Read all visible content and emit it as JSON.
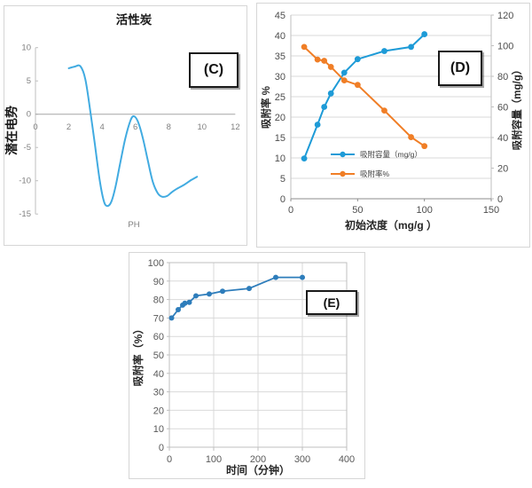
{
  "panels": {
    "c": {
      "annotation": "(C)"
    },
    "d": {
      "annotation": "(D)"
    },
    "e": {
      "annotation": "(E)"
    }
  },
  "chart_data": [
    {
      "id": "c",
      "type": "line",
      "title": "活性炭",
      "xlabel": "PH",
      "ylabel": "潜在电势",
      "xlim": [
        0,
        12
      ],
      "xticks": [
        0,
        2,
        4,
        6,
        8,
        10,
        12
      ],
      "ylim": [
        -15,
        10
      ],
      "yticks": [
        -15,
        -10,
        -5,
        0,
        5,
        10
      ],
      "grid": false,
      "legend_position": "none",
      "annotation": "(C)",
      "series": [
        {
          "name": "潜在电势",
          "color": "#41ABE1",
          "markers": false,
          "smooth": true,
          "points": [
            [
              2.0,
              6.9
            ],
            [
              2.35,
              7.15
            ],
            [
              2.7,
              7.2
            ],
            [
              3.0,
              5.2
            ],
            [
              3.3,
              0.3
            ],
            [
              3.55,
              -4.2
            ],
            [
              3.85,
              -9.8
            ],
            [
              4.1,
              -13.0
            ],
            [
              4.3,
              -13.8
            ],
            [
              4.55,
              -13.2
            ],
            [
              4.8,
              -11.0
            ],
            [
              5.1,
              -7.2
            ],
            [
              5.4,
              -3.6
            ],
            [
              5.7,
              -1.0
            ],
            [
              5.9,
              -0.3
            ],
            [
              6.15,
              -1.1
            ],
            [
              6.45,
              -3.6
            ],
            [
              6.75,
              -7.0
            ],
            [
              7.05,
              -10.2
            ],
            [
              7.35,
              -11.9
            ],
            [
              7.6,
              -12.4
            ],
            [
              7.9,
              -12.3
            ],
            [
              8.2,
              -11.7
            ],
            [
              8.5,
              -11.2
            ],
            [
              9.0,
              -10.5
            ],
            [
              9.35,
              -9.9
            ],
            [
              9.7,
              -9.4
            ]
          ]
        }
      ]
    },
    {
      "id": "d",
      "type": "line",
      "title": "",
      "xlabel": "初始浓度（mg/g ）",
      "ylabel_left": "吸附率 %",
      "ylabel_right": "吸附容量（mg/g）",
      "xlim": [
        0,
        150
      ],
      "xticks": [
        0,
        50,
        100,
        150
      ],
      "ylim_left": [
        0,
        45
      ],
      "yticks_left": [
        0,
        5,
        10,
        15,
        20,
        25,
        30,
        35,
        40,
        45
      ],
      "ylim_right": [
        0,
        120
      ],
      "yticks_right": [
        0,
        20,
        40,
        60,
        80,
        100,
        120
      ],
      "grid": "horizontal",
      "legend_position": "inside-lower-left",
      "annotation": "(D)",
      "x": [
        10,
        20,
        25,
        30,
        40,
        50,
        70,
        90,
        100
      ],
      "series": [
        {
          "name": "吸附容量（mg/g）",
          "axis": "right",
          "color": "#1E9BD7",
          "markers": true,
          "values": [
            26.3,
            48.4,
            60.0,
            68.8,
            82.4,
            91.2,
            96.5,
            99.2,
            107.5
          ]
        },
        {
          "name": "吸附率%",
          "axis": "left",
          "color": "#F07E26",
          "markers": true,
          "values": [
            37.2,
            34.1,
            33.8,
            32.3,
            29.0,
            27.9,
            21.6,
            15.1,
            12.9
          ]
        }
      ]
    },
    {
      "id": "e",
      "type": "line",
      "title": "",
      "xlabel": "时间（分钟）",
      "ylabel": "吸附率（%）",
      "xlim": [
        0,
        400
      ],
      "xticks": [
        0,
        100,
        200,
        300,
        400
      ],
      "ylim": [
        0,
        100
      ],
      "yticks": [
        0,
        10,
        20,
        30,
        40,
        50,
        60,
        70,
        80,
        90,
        100
      ],
      "grid": "both",
      "legend_position": "none",
      "annotation": "(E)",
      "series": [
        {
          "name": "吸附率",
          "color": "#2E7DBB",
          "markers": true,
          "smooth": false,
          "points": [
            [
              5,
              70
            ],
            [
              20,
              74.5
            ],
            [
              30,
              77
            ],
            [
              35,
              78
            ],
            [
              45,
              78.5
            ],
            [
              60,
              82
            ],
            [
              90,
              83
            ],
            [
              120,
              84.5
            ],
            [
              180,
              86
            ],
            [
              240,
              92
            ],
            [
              300,
              92
            ]
          ]
        }
      ]
    }
  ],
  "style": {
    "panel_border": "#d6d6d6",
    "gridline": "#d9d9d9",
    "axis_light": "#bfbfbf",
    "axis_dark": "#8c8c8c",
    "tick_text": "#595959",
    "tick_text_light": "#808080",
    "label_text": "#333333",
    "title_text": "#1a1a1a"
  }
}
